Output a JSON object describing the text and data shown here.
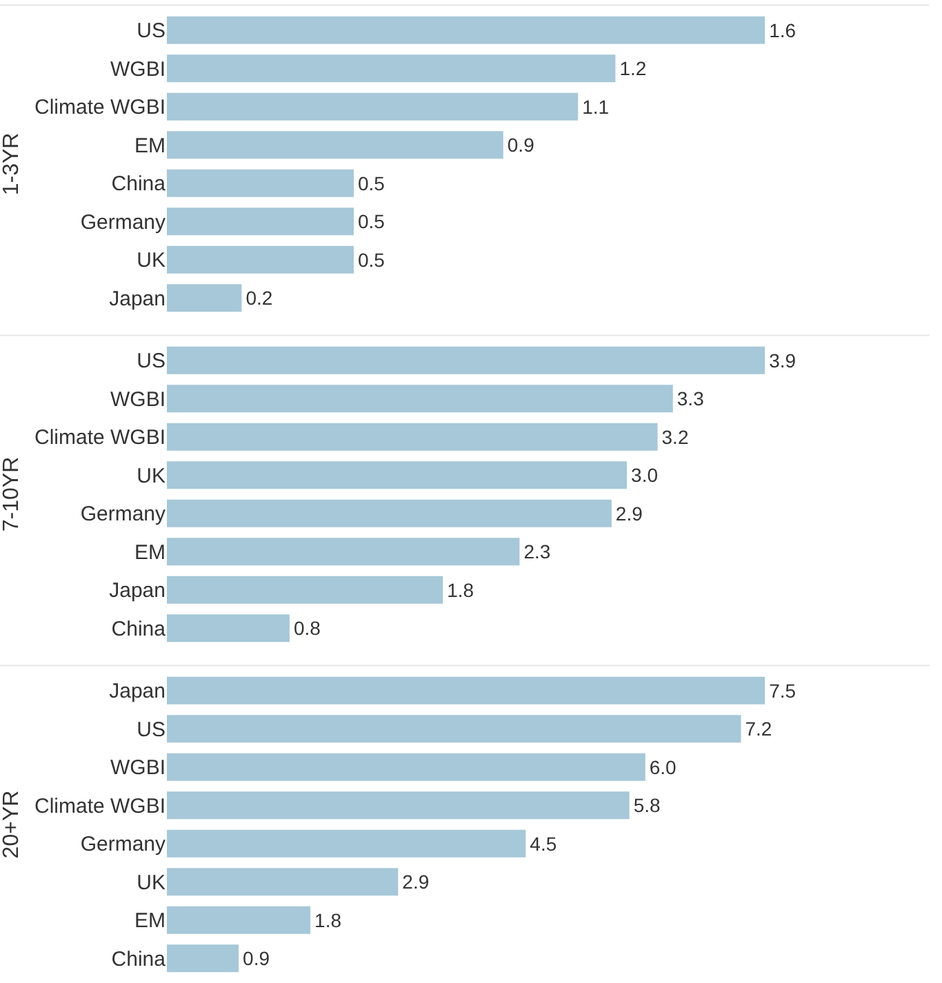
{
  "chart_data": [
    {
      "type": "bar",
      "orientation": "horizontal",
      "ylabel": "1-3YR",
      "categories": [
        "US",
        "WGBI",
        "Climate WGBI",
        "EM",
        "China",
        "Germany",
        "UK",
        "Japan"
      ],
      "values": [
        1.6,
        1.2,
        1.1,
        0.9,
        0.5,
        0.5,
        0.5,
        0.2
      ],
      "color": "#a6c8d8",
      "data_labels": true,
      "value_labels": [
        "1.6",
        "1.2",
        "1.1",
        "0.9",
        "0.5",
        "0.5",
        "0.5",
        "0.2"
      ],
      "tick_labels": "y"
    },
    {
      "type": "bar",
      "orientation": "horizontal",
      "ylabel": "7-10YR",
      "categories": [
        "US",
        "WGBI",
        "Climate WGBI",
        "UK",
        "Germany",
        "EM",
        "Japan",
        "China"
      ],
      "values": [
        3.9,
        3.3,
        3.2,
        3.0,
        2.9,
        2.3,
        1.8,
        0.8
      ],
      "color": "#a6c8d8",
      "data_labels": true,
      "value_labels": [
        "3.9",
        "3.3",
        "3.2",
        "3.0",
        "2.9",
        "2.3",
        "1.8",
        "0.8"
      ],
      "tick_labels": "y"
    },
    {
      "type": "bar",
      "orientation": "horizontal",
      "ylabel": "20+YR",
      "categories": [
        "Japan",
        "US",
        "WGBI",
        "Climate WGBI",
        "Germany",
        "UK",
        "EM",
        "China"
      ],
      "values": [
        7.5,
        7.2,
        6.0,
        5.8,
        4.5,
        2.9,
        1.8,
        0.9
      ],
      "color": "#a6c8d8",
      "data_labels": true,
      "value_labels": [
        "7.5",
        "7.2",
        "6.0",
        "5.8",
        "4.5",
        "2.9",
        "1.8",
        "0.9"
      ],
      "tick_labels": "y"
    }
  ]
}
